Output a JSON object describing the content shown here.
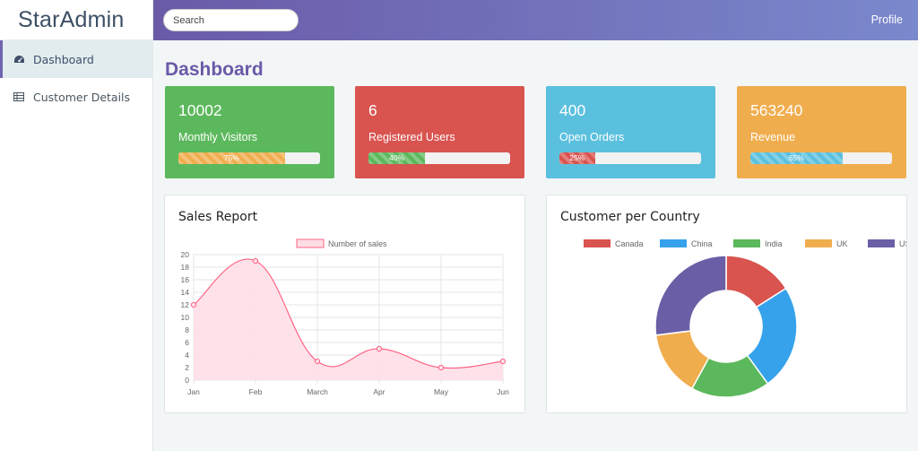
{
  "app": {
    "brand": "StarAdmin"
  },
  "sidebar": {
    "items": [
      {
        "label": "Dashboard",
        "icon": "dashboard-gauge-icon",
        "active": true
      },
      {
        "label": "Customer Details",
        "icon": "table-icon",
        "active": false
      }
    ]
  },
  "topbar": {
    "search_placeholder": "Search",
    "search_value": "",
    "profile_label": "Profile"
  },
  "page": {
    "title": "Dashboard"
  },
  "stats": [
    {
      "value": "10002",
      "label": "Monthly Visitors",
      "progress": 75,
      "progress_label": "75%",
      "card_color": "#5cb85c",
      "bar_color": "#f0ad4e"
    },
    {
      "value": "6",
      "label": "Registered Users",
      "progress": 40,
      "progress_label": "40%",
      "card_color": "#d9534f",
      "bar_color": "#5cb85c"
    },
    {
      "value": "400",
      "label": "Open Orders",
      "progress": 25,
      "progress_label": "25%",
      "card_color": "#5bc0de",
      "bar_color": "#d9534f"
    },
    {
      "value": "563240",
      "label": "Revenue",
      "progress": 65,
      "progress_label": "65%",
      "card_color": "#f0ad4e",
      "bar_color": "#5bc0de"
    }
  ],
  "sales_report": {
    "title": "Sales Report"
  },
  "customer_country": {
    "title": "Customer per Country"
  },
  "chart_data": [
    {
      "type": "area",
      "title": "Sales Report",
      "categories": [
        "Jan",
        "Feb",
        "March",
        "Apr",
        "May",
        "Jun"
      ],
      "series": [
        {
          "name": "Number of sales",
          "values": [
            12,
            19,
            3,
            5,
            2,
            3
          ],
          "color": "#ff6384",
          "fill": "#ffdde5"
        }
      ],
      "yticks": [
        "0",
        "2",
        "4",
        "6",
        "8",
        "10",
        "12",
        "14",
        "16",
        "18",
        "20"
      ],
      "ylim": [
        0,
        20
      ],
      "grid": true,
      "legend": "top"
    },
    {
      "type": "pie",
      "subtype": "doughnut",
      "title": "Customer per Country",
      "categories": [
        "Canada",
        "China",
        "India",
        "UK",
        "USA"
      ],
      "values": [
        16,
        24,
        18,
        15,
        27
      ],
      "colors": [
        "#d9534f",
        "#36a2eb",
        "#5cb85c",
        "#f0ad4e",
        "#6a5fa6"
      ],
      "legend": "top"
    }
  ]
}
